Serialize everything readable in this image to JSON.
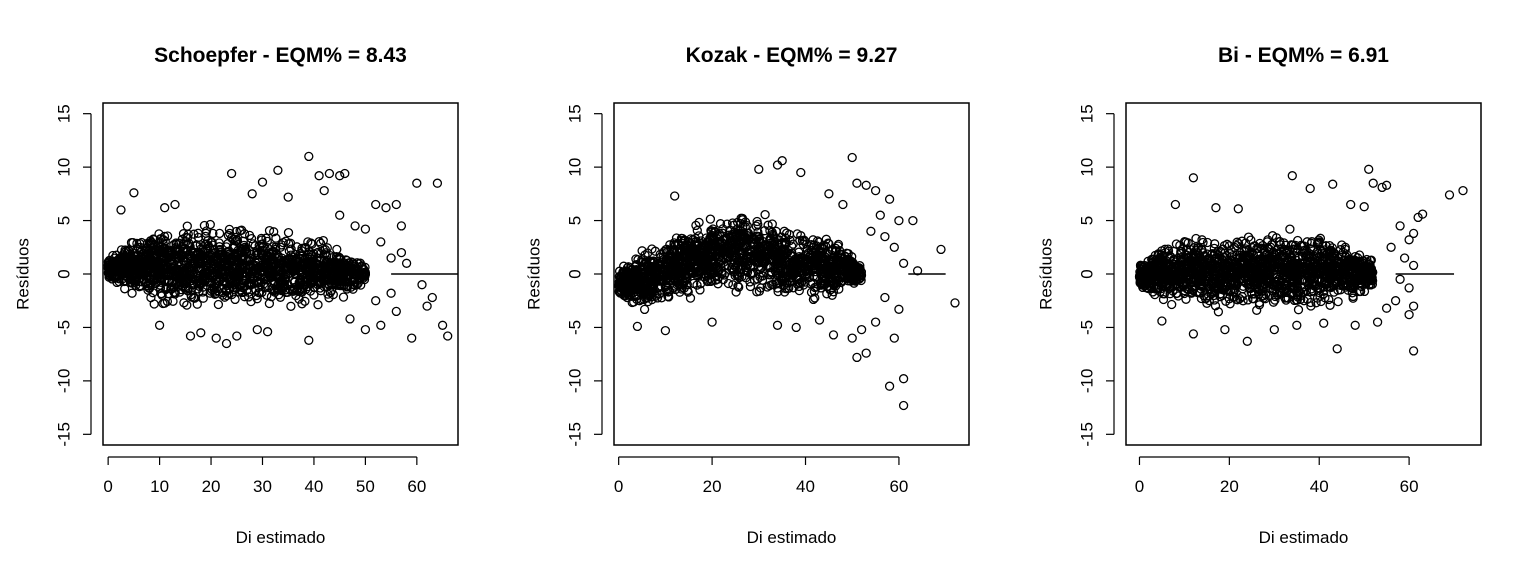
{
  "chart_data": [
    {
      "type": "scatter",
      "title": "Schoepfer - EQM% =  8.43",
      "xlabel": "Di estimado",
      "ylabel": "Resíduos",
      "xlim": [
        -1,
        68
      ],
      "ylim": [
        -16,
        16
      ],
      "xticks": [
        0,
        10,
        20,
        30,
        40,
        50,
        60
      ],
      "yticks": [
        -15,
        -10,
        -5,
        0,
        5,
        10,
        15
      ],
      "reference_line": {
        "y": 0,
        "x_from": 55,
        "x_to": 68
      },
      "envelope": {
        "x_min": 0,
        "x_max": 50,
        "upper": [
          [
            0,
            1.5
          ],
          [
            3,
            3.5
          ],
          [
            8,
            4.5
          ],
          [
            15,
            5
          ],
          [
            25,
            5
          ],
          [
            35,
            4.5
          ],
          [
            42,
            3.5
          ],
          [
            48,
            2
          ],
          [
            50,
            1
          ]
        ],
        "lower": [
          [
            0,
            -0.5
          ],
          [
            3,
            -2
          ],
          [
            8,
            -3
          ],
          [
            15,
            -3.5
          ],
          [
            25,
            -3.5
          ],
          [
            35,
            -3.5
          ],
          [
            42,
            -3
          ],
          [
            48,
            -2
          ],
          [
            50,
            -1
          ]
        ]
      },
      "outliers": [
        {
          "x": 5,
          "y": 7.6
        },
        {
          "x": 2.5,
          "y": 6
        },
        {
          "x": 11,
          "y": 6.2
        },
        {
          "x": 13,
          "y": 6.5
        },
        {
          "x": 24,
          "y": 9.4
        },
        {
          "x": 30,
          "y": 8.6
        },
        {
          "x": 33,
          "y": 9.7
        },
        {
          "x": 39,
          "y": 11
        },
        {
          "x": 41,
          "y": 9.2
        },
        {
          "x": 43,
          "y": 9.4
        },
        {
          "x": 45,
          "y": 9.2
        },
        {
          "x": 46,
          "y": 9.4
        },
        {
          "x": 60,
          "y": 8.5
        },
        {
          "x": 64,
          "y": 8.5
        },
        {
          "x": 42,
          "y": 7.8
        },
        {
          "x": 28,
          "y": 7.5
        },
        {
          "x": 35,
          "y": 7.2
        },
        {
          "x": 45,
          "y": 5.5
        },
        {
          "x": 48,
          "y": 4.5
        },
        {
          "x": 50,
          "y": 4.2
        },
        {
          "x": 52,
          "y": 6.5
        },
        {
          "x": 54,
          "y": 6.2
        },
        {
          "x": 56,
          "y": 6.5
        },
        {
          "x": 57,
          "y": 4.5
        },
        {
          "x": 57,
          "y": 2
        },
        {
          "x": 53,
          "y": 3
        },
        {
          "x": 55,
          "y": 1.5
        },
        {
          "x": 58,
          "y": 1
        },
        {
          "x": 59,
          "y": -6
        },
        {
          "x": 62,
          "y": -3
        },
        {
          "x": 61,
          "y": -1
        },
        {
          "x": 63,
          "y": -2.2
        },
        {
          "x": 65,
          "y": -4.8
        },
        {
          "x": 66,
          "y": -5.8
        },
        {
          "x": 56,
          "y": -3.5
        },
        {
          "x": 53,
          "y": -4.8
        },
        {
          "x": 50,
          "y": -5.2
        },
        {
          "x": 47,
          "y": -4.2
        },
        {
          "x": 39,
          "y": -6.2
        },
        {
          "x": 21,
          "y": -6
        },
        {
          "x": 23,
          "y": -6.5
        },
        {
          "x": 16,
          "y": -5.8
        },
        {
          "x": 18,
          "y": -5.5
        },
        {
          "x": 25,
          "y": -5.8
        },
        {
          "x": 29,
          "y": -5.2
        },
        {
          "x": 31,
          "y": -5.4
        },
        {
          "x": 10,
          "y": -4.8
        },
        {
          "x": 55,
          "y": -1.8
        },
        {
          "x": 52,
          "y": -2.5
        }
      ]
    },
    {
      "type": "scatter",
      "title": "Kozak - EQM% =  9.27",
      "xlabel": "Di estimado",
      "ylabel": "Resíduos",
      "xlim": [
        -1,
        75
      ],
      "ylim": [
        -16,
        16
      ],
      "xticks": [
        0,
        20,
        40,
        60
      ],
      "yticks": [
        -15,
        -10,
        -5,
        0,
        5,
        10,
        15
      ],
      "reference_line": {
        "y": 0,
        "x_from": 62,
        "x_to": 70
      },
      "envelope": {
        "x_min": 0,
        "x_max": 52,
        "upper": [
          [
            0,
            0.5
          ],
          [
            3,
            2
          ],
          [
            8,
            3
          ],
          [
            15,
            4.5
          ],
          [
            22,
            6
          ],
          [
            28,
            6.5
          ],
          [
            35,
            5.5
          ],
          [
            42,
            4.5
          ],
          [
            48,
            3
          ],
          [
            52,
            1
          ]
        ],
        "lower": [
          [
            0,
            -2
          ],
          [
            3,
            -3.5
          ],
          [
            8,
            -3.5
          ],
          [
            15,
            -2.5
          ],
          [
            22,
            -2
          ],
          [
            28,
            -2.2
          ],
          [
            35,
            -2.5
          ],
          [
            42,
            -3
          ],
          [
            48,
            -2
          ],
          [
            52,
            -1
          ]
        ]
      },
      "outliers": [
        {
          "x": 12,
          "y": 7.3
        },
        {
          "x": 30,
          "y": 9.8
        },
        {
          "x": 34,
          "y": 10.2
        },
        {
          "x": 35,
          "y": 10.6
        },
        {
          "x": 39,
          "y": 9.5
        },
        {
          "x": 50,
          "y": 10.9
        },
        {
          "x": 51,
          "y": 8.5
        },
        {
          "x": 53,
          "y": 8.3
        },
        {
          "x": 55,
          "y": 7.8
        },
        {
          "x": 58,
          "y": 7
        },
        {
          "x": 56,
          "y": 5.5
        },
        {
          "x": 60,
          "y": 5
        },
        {
          "x": 63,
          "y": 5
        },
        {
          "x": 54,
          "y": 4
        },
        {
          "x": 57,
          "y": 3.5
        },
        {
          "x": 59,
          "y": 2.5
        },
        {
          "x": 69,
          "y": 2.3
        },
        {
          "x": 61,
          "y": 1
        },
        {
          "x": 64,
          "y": 0.3
        },
        {
          "x": 72,
          "y": -2.7
        },
        {
          "x": 57,
          "y": -2.2
        },
        {
          "x": 60,
          "y": -3.3
        },
        {
          "x": 55,
          "y": -4.5
        },
        {
          "x": 52,
          "y": -5.2
        },
        {
          "x": 50,
          "y": -6
        },
        {
          "x": 51,
          "y": -7.8
        },
        {
          "x": 53,
          "y": -7.4
        },
        {
          "x": 59,
          "y": -6
        },
        {
          "x": 58,
          "y": -10.5
        },
        {
          "x": 61,
          "y": -9.8
        },
        {
          "x": 61,
          "y": -12.3
        },
        {
          "x": 46,
          "y": -5.7
        },
        {
          "x": 43,
          "y": -4.3
        },
        {
          "x": 38,
          "y": -5
        },
        {
          "x": 34,
          "y": -4.8
        },
        {
          "x": 10,
          "y": -5.3
        },
        {
          "x": 4,
          "y": -4.9
        },
        {
          "x": 20,
          "y": -4.5
        },
        {
          "x": 48,
          "y": 6.5
        },
        {
          "x": 45,
          "y": 7.5
        }
      ]
    },
    {
      "type": "scatter",
      "title": "Bi - EQM% =  6.91",
      "xlabel": "Di estimado",
      "ylabel": "Resíduos",
      "xlim": [
        -3,
        76
      ],
      "ylim": [
        -16,
        16
      ],
      "xticks": [
        0,
        20,
        40,
        60
      ],
      "yticks": [
        -15,
        -10,
        -5,
        0,
        5,
        10,
        15
      ],
      "reference_line": {
        "y": 0,
        "x_from": 57,
        "x_to": 70
      },
      "envelope": {
        "x_min": 0,
        "x_max": 52,
        "upper": [
          [
            0,
            1
          ],
          [
            3,
            2.5
          ],
          [
            8,
            3.5
          ],
          [
            15,
            4
          ],
          [
            25,
            4.2
          ],
          [
            35,
            4.2
          ],
          [
            42,
            4
          ],
          [
            48,
            3
          ],
          [
            52,
            1.5
          ]
        ],
        "lower": [
          [
            0,
            -1.5
          ],
          [
            3,
            -2.5
          ],
          [
            8,
            -3.2
          ],
          [
            15,
            -3.5
          ],
          [
            25,
            -3.8
          ],
          [
            35,
            -3.8
          ],
          [
            42,
            -3.5
          ],
          [
            48,
            -2.5
          ],
          [
            52,
            -1.5
          ]
        ]
      },
      "outliers": [
        {
          "x": 12,
          "y": 9
        },
        {
          "x": 34,
          "y": 9.2
        },
        {
          "x": 51,
          "y": 9.8
        },
        {
          "x": 52,
          "y": 8.5
        },
        {
          "x": 54,
          "y": 8.1
        },
        {
          "x": 55,
          "y": 8.3
        },
        {
          "x": 69,
          "y": 7.4
        },
        {
          "x": 72,
          "y": 7.8
        },
        {
          "x": 38,
          "y": 8
        },
        {
          "x": 43,
          "y": 8.4
        },
        {
          "x": 8,
          "y": 6.5
        },
        {
          "x": 17,
          "y": 6.2
        },
        {
          "x": 22,
          "y": 6.1
        },
        {
          "x": 47,
          "y": 6.5
        },
        {
          "x": 50,
          "y": 6.3
        },
        {
          "x": 62,
          "y": 5.3
        },
        {
          "x": 63,
          "y": 5.6
        },
        {
          "x": 58,
          "y": 4.5
        },
        {
          "x": 60,
          "y": 3.2
        },
        {
          "x": 61,
          "y": 3.8
        },
        {
          "x": 56,
          "y": 2.5
        },
        {
          "x": 59,
          "y": 1.5
        },
        {
          "x": 61,
          "y": 0.8
        },
        {
          "x": 58,
          "y": -0.5
        },
        {
          "x": 60,
          "y": -1.3
        },
        {
          "x": 57,
          "y": -2.5
        },
        {
          "x": 55,
          "y": -3.2
        },
        {
          "x": 53,
          "y": -4.5
        },
        {
          "x": 61,
          "y": -3
        },
        {
          "x": 60,
          "y": -3.8
        },
        {
          "x": 61,
          "y": -7.2
        },
        {
          "x": 44,
          "y": -7
        },
        {
          "x": 24,
          "y": -6.3
        },
        {
          "x": 12,
          "y": -5.6
        },
        {
          "x": 19,
          "y": -5.2
        },
        {
          "x": 30,
          "y": -5.2
        },
        {
          "x": 35,
          "y": -4.8
        },
        {
          "x": 41,
          "y": -4.6
        },
        {
          "x": 5,
          "y": -4.4
        },
        {
          "x": 48,
          "y": -4.8
        }
      ]
    }
  ]
}
